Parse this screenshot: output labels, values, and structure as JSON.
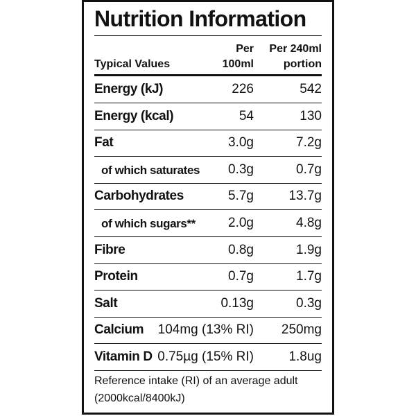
{
  "header": {
    "title": "Nutrition Information"
  },
  "table": {
    "columns": [
      [
        "Typical Values"
      ],
      [
        "Per",
        "100ml"
      ],
      [
        "Per 240ml",
        "portion"
      ]
    ],
    "rows": [
      [
        "Energy (kJ)",
        "226",
        "542"
      ],
      [
        "Energy (kcal)",
        "54",
        "130"
      ],
      [
        "Fat",
        "3.0g",
        "7.2g"
      ],
      [
        "of which saturates",
        "0.3g",
        "0.7g"
      ],
      [
        "Carbohydrates",
        "5.7g",
        "13.7g"
      ],
      [
        "of which sugars**",
        "2.0g",
        "4.8g"
      ],
      [
        "Fibre",
        "0.8g",
        "1.9g"
      ],
      [
        "Protein",
        "0.7g",
        "1.7g"
      ],
      [
        "Salt",
        "0.13g",
        "0.3g"
      ],
      [
        "Calcium",
        "104mg (13% RI)",
        "250mg"
      ],
      [
        "Vitamin D",
        "0.75µg (15% RI)",
        "1.8ug"
      ]
    ]
  },
  "footer": [
    "Reference intake (RI) of an average adult",
    "(2000kcal/8400kJ)"
  ]
}
